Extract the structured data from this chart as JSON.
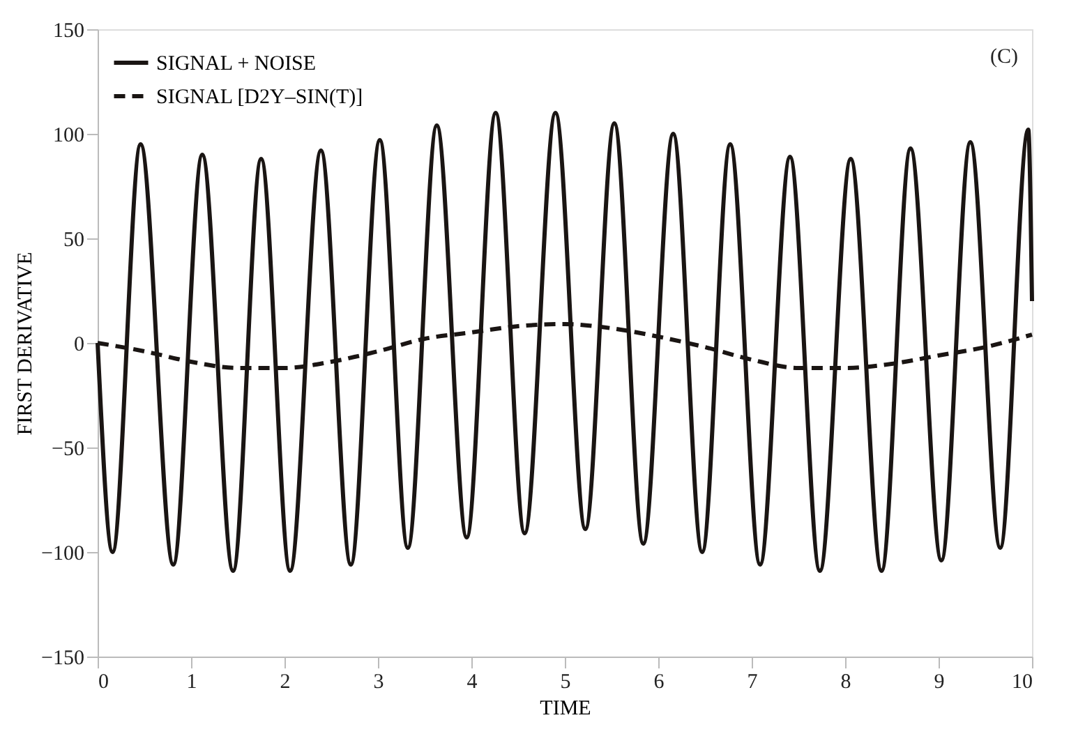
{
  "chart_data": {
    "type": "line",
    "xlabel": "TIME",
    "ylabel": "FIRST DERIVATIVE",
    "annotations": [
      "(C)"
    ],
    "xlim": [
      0,
      10
    ],
    "xticks": [
      0,
      1,
      2,
      3,
      4,
      5,
      6,
      7,
      8,
      9,
      10
    ],
    "ylim": [
      -150,
      150
    ],
    "yticks": [
      -150,
      -100,
      -50,
      0,
      50,
      100,
      150
    ],
    "grid": false,
    "legend": "top left",
    "marker": "none",
    "series": [
      {
        "name": "SIGNAL  +  NOISE",
        "color": "#1a1513",
        "line_style": "solid",
        "x": [
          0,
          0.16,
          0.46,
          0.81,
          1.12,
          1.45,
          1.75,
          2.06,
          2.39,
          2.71,
          3.02,
          3.32,
          3.63,
          3.95,
          4.26,
          4.57,
          4.9,
          5.22,
          5.53,
          5.84,
          6.16,
          6.47,
          6.77,
          7.09,
          7.41,
          7.73,
          8.06,
          8.39,
          8.7,
          9.03,
          9.34,
          9.66,
          9.96,
          10
        ],
        "values": [
          0,
          -100,
          95,
          -106,
          90,
          -109,
          88,
          -109,
          92,
          -106,
          97,
          -98,
          104,
          -93,
          110,
          -91,
          110,
          -89,
          105,
          -96,
          100,
          -100,
          95,
          -106,
          89,
          -109,
          88,
          -109,
          93,
          -104,
          96,
          -98,
          102,
          20
        ]
      },
      {
        "name": "SIGNAL  [D2Y–SIN(T)]",
        "color": "#1a1513",
        "line_style": "dashed",
        "x": [
          0,
          0.5,
          1,
          1.5,
          2,
          2.5,
          3,
          3.5,
          4,
          4.5,
          5,
          5.5,
          6,
          6.5,
          7,
          7.5,
          8,
          8.5,
          9,
          9.5,
          10
        ],
        "values": [
          0,
          -4,
          -9,
          -12,
          -12,
          -9,
          -4,
          2,
          5,
          8,
          9,
          7,
          3,
          -2,
          -8,
          -12,
          -12,
          -10,
          -6,
          -2,
          4
        ]
      }
    ]
  }
}
